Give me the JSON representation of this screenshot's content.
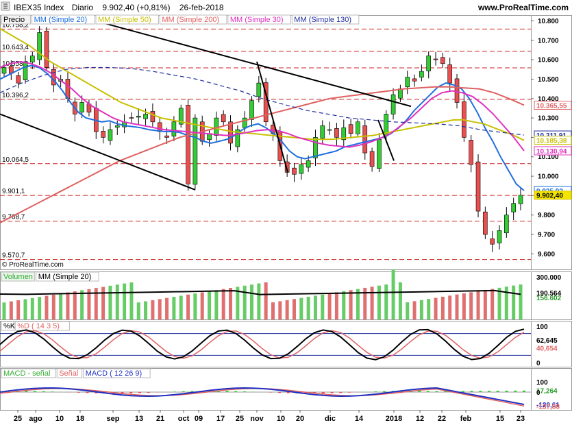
{
  "header": {
    "symbol": "IBEX35 Index",
    "period": "Diario",
    "price": "9.902,40 (+0,81%)",
    "date": "26-feb-2018",
    "brand": "www.ProRealTime.com",
    "copyright": "© ProRealTime.com"
  },
  "colors": {
    "up": "#33cc33",
    "down": "#e85050",
    "ma20": "#1f6fe0",
    "ma50": "#c8c000",
    "ma200": "#e06060",
    "ma30": "#e030c0",
    "ma130": "#2030a0",
    "grid_h": "#cc2020",
    "vol_up": "#66cc66",
    "vol_down": "#e07070"
  },
  "price_panel": {
    "legend": [
      {
        "label": "Precio",
        "color": "#000000"
      },
      {
        "label": "MM (Simple 20)",
        "color": "#1f6fe0"
      },
      {
        "label": "MM (Simple 50)",
        "color": "#c8c000"
      },
      {
        "label": "MM (Simple 200)",
        "color": "#e06060"
      },
      {
        "label": "MM (Simple 30)",
        "color": "#e030c0"
      },
      {
        "label": "MM (Simple 130)",
        "color": "#2030a0"
      }
    ],
    "ylim": [
      9520,
      10830
    ],
    "axis_ticks": [
      "10.800",
      "10.700",
      "10.600",
      "10.500",
      "10.400",
      "10.300",
      "10.200",
      "10.100",
      "10.000",
      "9.900",
      "9.800",
      "9.700",
      "9.600"
    ],
    "levels": [
      {
        "label": "10.758,2",
        "value": 10758.2
      },
      {
        "label": "10.643,4",
        "value": 10643.4
      },
      {
        "label": "10.558,1",
        "value": 10558.1
      },
      {
        "label": "10.396,2",
        "value": 10396.2
      },
      {
        "label": "10.064,5",
        "value": 10064.5
      },
      {
        "label": "9.901,1",
        "value": 9901.1
      },
      {
        "label": "9.768,7",
        "value": 9768.7
      },
      {
        "label": "9.570,7",
        "value": 9570.7
      }
    ],
    "value_badges": [
      {
        "label": "10.365,55",
        "value": 10365.55,
        "color": "#e06060"
      },
      {
        "label": "10.211,91",
        "value": 10211.91,
        "color": "#2030a0"
      },
      {
        "label": "10.185,38",
        "value": 10185.38,
        "color": "#c8c000"
      },
      {
        "label": "10.130,94",
        "value": 10130.94,
        "color": "#e030c0"
      },
      {
        "label": "9.925,92",
        "value": 9925.92,
        "color": "#1f6fe0"
      },
      {
        "label": "9.902,40",
        "value": 9902.4,
        "color": "#d4c000"
      }
    ]
  },
  "volume_panel": {
    "legend": [
      {
        "label": "Volumen",
        "color": "#33aa33"
      },
      {
        "label": "MM (Simple 20)",
        "color": "#000000"
      }
    ],
    "ticks": [
      "300.000",
      "190.564",
      "156.602"
    ]
  },
  "stoch_panel": {
    "legend": [
      {
        "label": "%K",
        "color": "#000000"
      },
      {
        "label": "%D ( 14 3 5)",
        "color": "#e06060"
      }
    ],
    "ticks": [
      "100",
      "62,645",
      "40,654",
      "0"
    ]
  },
  "macd_panel": {
    "legend": [
      {
        "label": "MACD - señal",
        "color": "#33aa33"
      },
      {
        "label": "Señal",
        "color": "#e06060"
      },
      {
        "label": "MACD ( 12 26 9)",
        "color": "#2030c0"
      }
    ],
    "ticks": [
      "100",
      "17,264",
      "0",
      "-120,61",
      "-137,88"
    ]
  },
  "x_axis": {
    "labels": [
      "25",
      "ago",
      "10",
      "18",
      "sep",
      "13",
      "21",
      "oct",
      "09",
      "17",
      "25",
      "nov",
      "10",
      "20",
      "dic",
      "14",
      "2018",
      "12",
      "22",
      "feb",
      "15",
      "23"
    ]
  },
  "chart_data": {
    "type": "line",
    "title": "IBEX35 Index",
    "xlabel": "",
    "ylabel": "",
    "ylim": [
      9520,
      10830
    ],
    "series": [
      {
        "name": "Precio",
        "values": [
          10560,
          10530,
          10480,
          10590,
          10620,
          10740,
          10560,
          10470,
          10500,
          10400,
          10320,
          10380,
          10330,
          10230,
          10200,
          10240,
          10260,
          10280,
          10300,
          10310,
          10320,
          10280,
          10230,
          10200,
          10280,
          10350,
          9960,
          10300,
          10180,
          10220,
          10300,
          10280,
          10170,
          10240,
          10300,
          10390,
          10480,
          10280,
          10220,
          10080,
          10020,
          10010,
          10060,
          10080,
          10200,
          10260,
          10240,
          10200,
          10250,
          10220,
          10280,
          10120,
          10050,
          10190,
          10320,
          10420,
          10450,
          10510,
          10490,
          10540,
          10620,
          10600,
          10580,
          10480,
          10380,
          10200,
          10060,
          9820,
          9700,
          9650,
          9720,
          9800,
          9860,
          9902
        ],
        "color": "#000000"
      },
      {
        "name": "MM (Simple 20)",
        "values": [
          10500,
          10520,
          10540,
          10560,
          10570,
          10560,
          10530,
          10490,
          10440,
          10380,
          10330,
          10300,
          10290,
          10280,
          10285,
          10270,
          10260,
          10255,
          10250,
          10240,
          10235,
          10230,
          10230,
          10225,
          10210,
          10200,
          10180,
          10170,
          10180,
          10190,
          10210,
          10240,
          10260,
          10270,
          10250,
          10220,
          10180,
          10130,
          10100,
          10090,
          10100,
          10110,
          10120,
          10130,
          10150,
          10160,
          10170,
          10180,
          10190,
          10200,
          10220,
          10250,
          10290,
          10340,
          10380,
          10420,
          10460,
          10480,
          10470,
          10450,
          10400,
          10330,
          10250,
          10180,
          10100,
          10030,
          9960,
          9926
        ],
        "color": "#1f6fe0"
      },
      {
        "name": "MM (Simple 50)",
        "values": [
          10760,
          10730,
          10700,
          10670,
          10630,
          10590,
          10560,
          10530,
          10500,
          10470,
          10440,
          10410,
          10380,
          10360,
          10340,
          10320,
          10300,
          10290,
          10280,
          10270,
          10260,
          10250,
          10240,
          10230,
          10225,
          10220,
          10215,
          10210,
          10205,
          10200,
          10195,
          10190,
          10190,
          10190,
          10195,
          10200,
          10205,
          10210,
          10220,
          10230,
          10240,
          10250,
          10260,
          10270,
          10280,
          10290,
          10290,
          10280,
          10270,
          10250,
          10230,
          10210,
          10185
        ],
        "color": "#c8c000"
      },
      {
        "name": "MM (Simple 200)",
        "values": [
          9760,
          9800,
          9840,
          9880,
          9920,
          9960,
          10000,
          10040,
          10080,
          10110,
          10140,
          10170,
          10200,
          10220,
          10240,
          10260,
          10280,
          10300,
          10320,
          10340,
          10360,
          10380,
          10400,
          10410,
          10420,
          10430,
          10440,
          10450,
          10455,
          10460,
          10460,
          10455,
          10450,
          10430,
          10400,
          10366
        ],
        "color": "#e06060"
      },
      {
        "name": "MM (Simple 30)",
        "values": [
          10560,
          10580,
          10590,
          10580,
          10560,
          10530,
          10490,
          10450,
          10400,
          10360,
          10330,
          10300,
          10280,
          10270,
          10260,
          10250,
          10240,
          10235,
          10230,
          10225,
          10220,
          10215,
          10210,
          10215,
          10225,
          10235,
          10240,
          10235,
          10220,
          10200,
          10185,
          10170,
          10160,
          10155,
          10150,
          10160,
          10175,
          10195,
          10220,
          10260,
          10300,
          10350,
          10400,
          10430,
          10440,
          10430,
          10410,
          10370,
          10320,
          10260,
          10200,
          10131
        ],
        "color": "#e030c0"
      }
    ]
  }
}
